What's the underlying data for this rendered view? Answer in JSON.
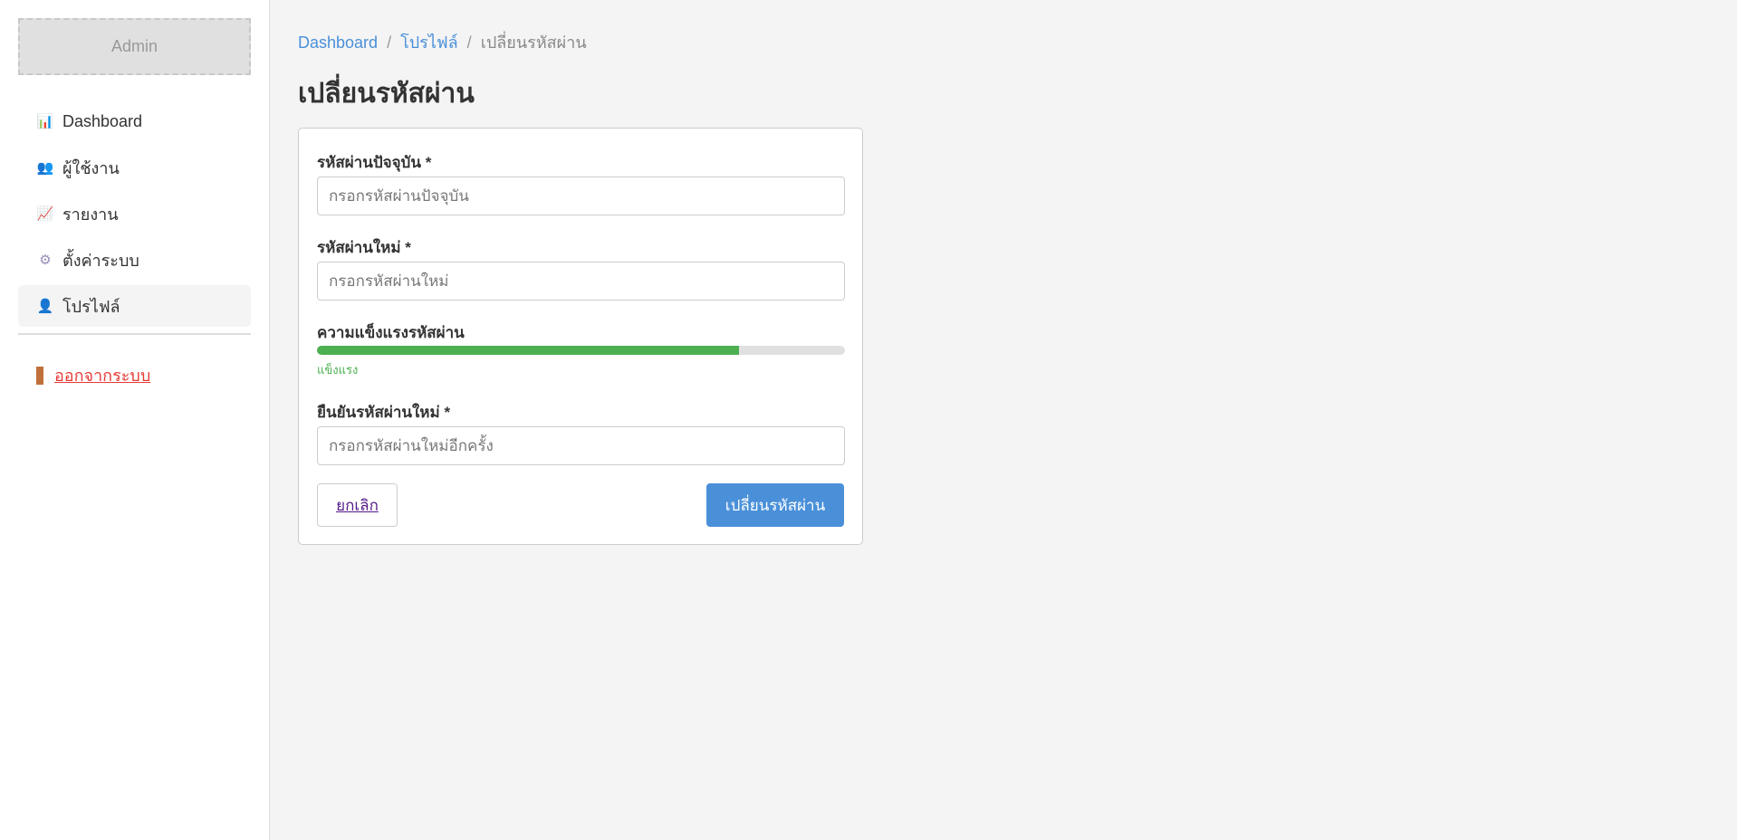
{
  "sidebar": {
    "logo": "Admin",
    "items": [
      {
        "label": "Dashboard",
        "icon": "bar-chart-icon",
        "glyph": "📊"
      },
      {
        "label": "ผู้ใช้งาน",
        "icon": "users-icon",
        "glyph": "👥"
      },
      {
        "label": "รายงาน",
        "icon": "trend-chart-icon",
        "glyph": "📈"
      },
      {
        "label": "ตั้งค่าระบบ",
        "icon": "gear-icon",
        "glyph": "⚙"
      },
      {
        "label": "โปรไฟล์",
        "icon": "user-icon",
        "glyph": "👤",
        "active": true
      }
    ],
    "logout": "ออกจากระบบ"
  },
  "breadcrumb": [
    "Dashboard",
    "โปรไฟล์",
    "เปลี่ยนรหัสผ่าน"
  ],
  "page_title": "เปลี่ยนรหัสผ่าน",
  "form": {
    "current": {
      "label": "รหัสผ่านปัจจุบัน *",
      "placeholder": "กรอกรหัสผ่านปัจจุบัน",
      "value": ""
    },
    "new": {
      "label": "รหัสผ่านใหม่ *",
      "placeholder": "กรอกรหัสผ่านใหม่",
      "value": ""
    },
    "strength": {
      "label": "ความแข็งแรงรหัสผ่าน",
      "percent": 80,
      "text": "แข็งแรง",
      "color": "#4caf50"
    },
    "confirm": {
      "label": "ยืนยันรหัสผ่านใหม่ *",
      "placeholder": "กรอกรหัสผ่านใหม่อีกครั้ง",
      "value": ""
    },
    "cancel": "ยกเลิก",
    "submit": "เปลี่ยนรหัสผ่าน"
  },
  "colors": {
    "accent": "#4a90d9",
    "danger": "#e53935",
    "success": "#4caf50"
  }
}
